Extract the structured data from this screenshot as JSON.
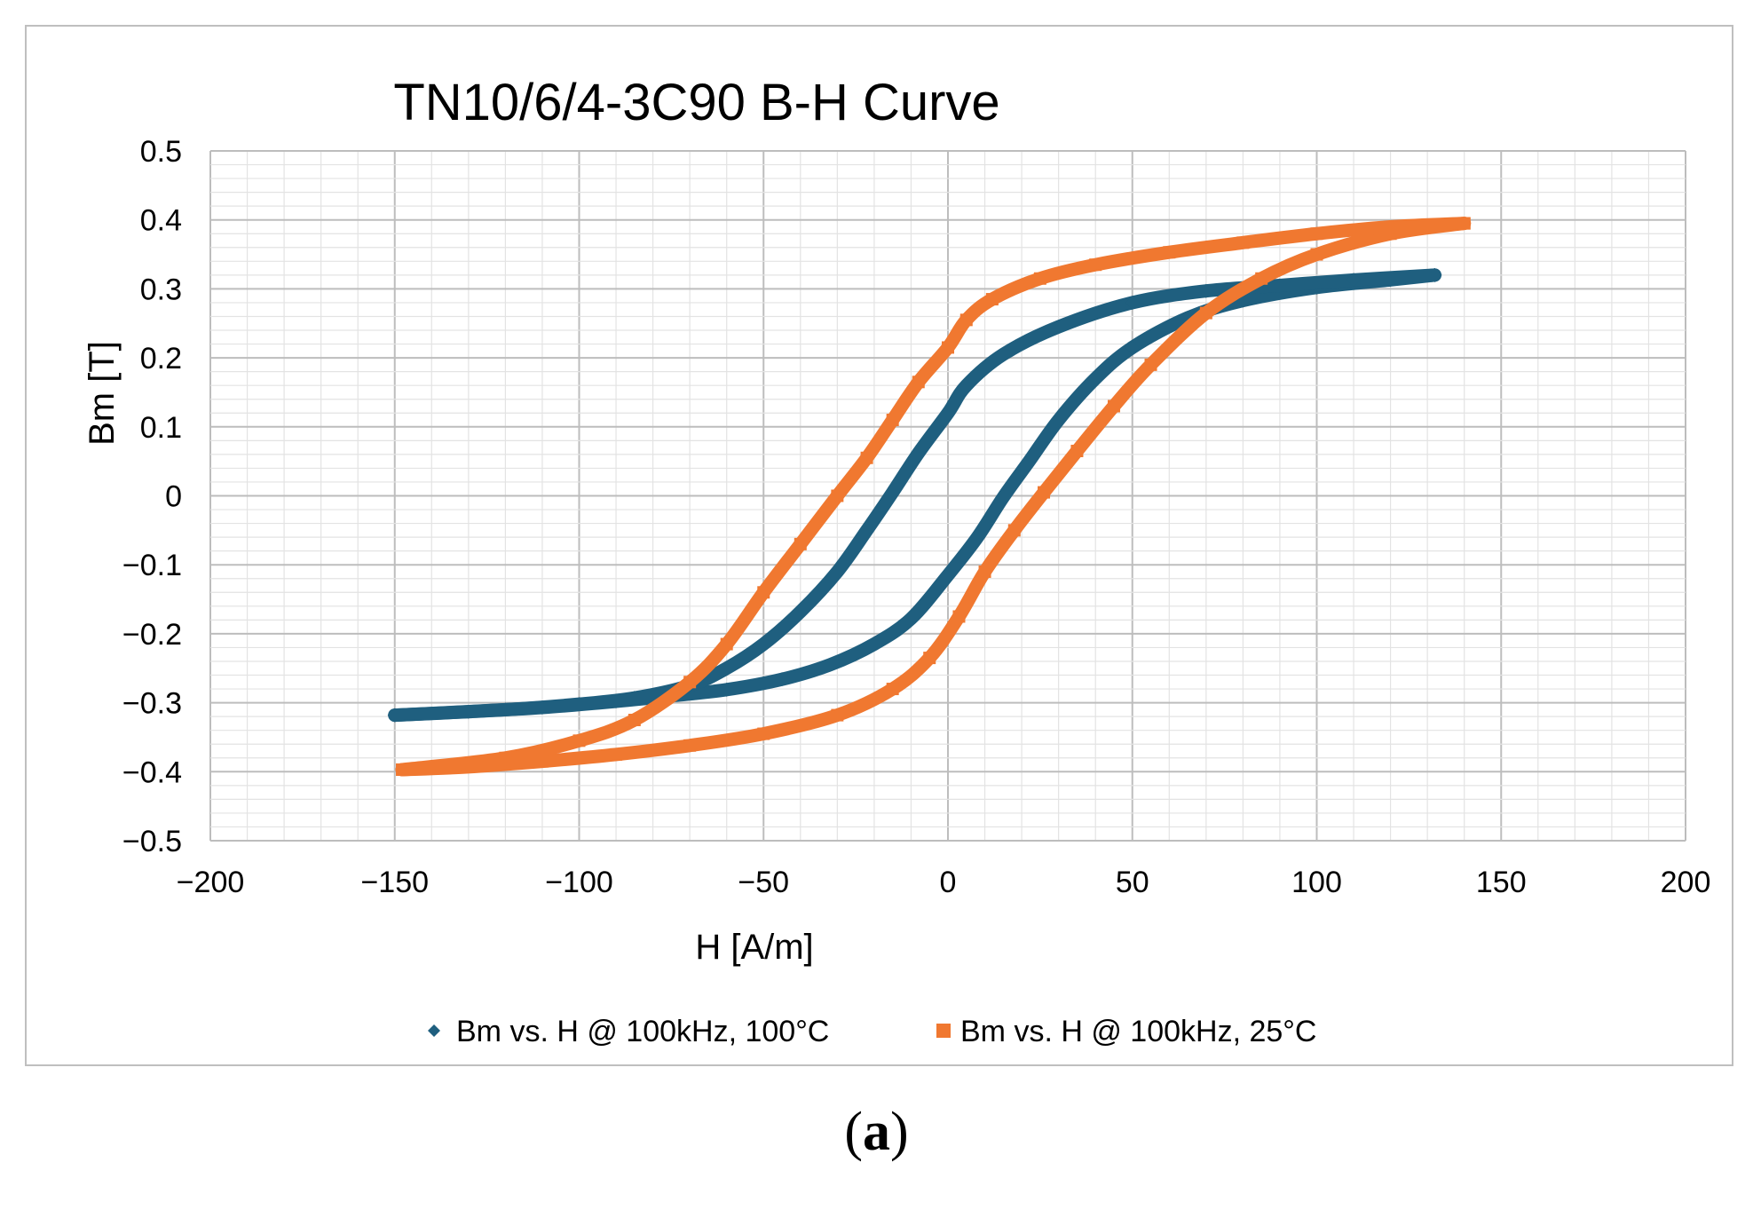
{
  "chart_data": {
    "type": "scatter",
    "title": "TN10/6/4-3C90 B-H Curve",
    "xlabel": "H [A/m]",
    "ylabel": "Bm [T]",
    "xlim": [
      -200,
      200
    ],
    "ylim": [
      -0.5,
      0.5
    ],
    "x_major_step": 50,
    "y_major_step": 0.1,
    "grid": "major and minor",
    "legend_position": "bottom",
    "x_ticks": [
      "−200",
      "−150",
      "−100",
      "−50",
      "0",
      "50",
      "100",
      "150",
      "200"
    ],
    "y_ticks": [
      "0.5",
      "0.4",
      "0.3",
      "0.2",
      "0.1",
      "0",
      "−0.1",
      "−0.2",
      "−0.3",
      "−0.4",
      "−0.5"
    ],
    "series": [
      {
        "name": "Bm vs. H @ 100kHz, 100°C",
        "color": "#1f5f7f",
        "marker": "diamond",
        "ascending": {
          "x": [
            -150,
            -130,
            -110,
            -90,
            -75,
            -60,
            -45,
            -32,
            -20,
            -10,
            0,
            8,
            15,
            22,
            30,
            40,
            50,
            65,
            80,
            100,
            120,
            132
          ],
          "y": [
            -0.318,
            -0.313,
            -0.307,
            -0.298,
            -0.29,
            -0.281,
            -0.266,
            -0.245,
            -0.215,
            -0.178,
            -0.115,
            -0.06,
            -0.002,
            0.05,
            0.11,
            0.17,
            0.215,
            0.258,
            0.283,
            0.302,
            0.313,
            0.32
          ]
        },
        "descending": {
          "x": [
            132,
            110,
            90,
            70,
            50,
            30,
            15,
            5,
            0,
            -8,
            -15,
            -22,
            -30,
            -40,
            -50,
            -60,
            -70,
            -85,
            -100,
            -120,
            -150
          ],
          "y": [
            0.32,
            0.313,
            0.305,
            0.297,
            0.28,
            0.245,
            0.205,
            0.16,
            0.12,
            0.062,
            0.005,
            -0.05,
            -0.11,
            -0.168,
            -0.215,
            -0.25,
            -0.275,
            -0.293,
            -0.302,
            -0.31,
            -0.318
          ]
        }
      },
      {
        "name": "Bm vs. H @ 100kHz, 25°C",
        "color": "#f07830",
        "marker": "square",
        "ascending": {
          "x": [
            -148,
            -130,
            -110,
            -90,
            -70,
            -50,
            -30,
            -15,
            -5,
            3,
            10,
            18,
            26,
            35,
            45,
            55,
            70,
            85,
            100,
            120,
            140
          ],
          "y": [
            -0.397,
            -0.393,
            -0.385,
            -0.375,
            -0.362,
            -0.345,
            -0.318,
            -0.28,
            -0.235,
            -0.175,
            -0.11,
            -0.05,
            0.005,
            0.065,
            0.13,
            0.19,
            0.265,
            0.315,
            0.35,
            0.38,
            0.395
          ]
        },
        "descending": {
          "x": [
            140,
            120,
            100,
            80,
            60,
            40,
            25,
            12,
            5,
            0,
            -8,
            -15,
            -22,
            -30,
            -40,
            -50,
            -60,
            -70,
            -85,
            -100,
            -120,
            -148
          ],
          "y": [
            0.395,
            0.39,
            0.38,
            0.367,
            0.353,
            0.335,
            0.315,
            0.285,
            0.255,
            0.215,
            0.165,
            0.11,
            0.055,
            0.0,
            -0.07,
            -0.14,
            -0.215,
            -0.27,
            -0.325,
            -0.355,
            -0.38,
            -0.397
          ]
        }
      }
    ]
  },
  "caption": {
    "open": "(",
    "label": "a",
    "close": ")"
  }
}
